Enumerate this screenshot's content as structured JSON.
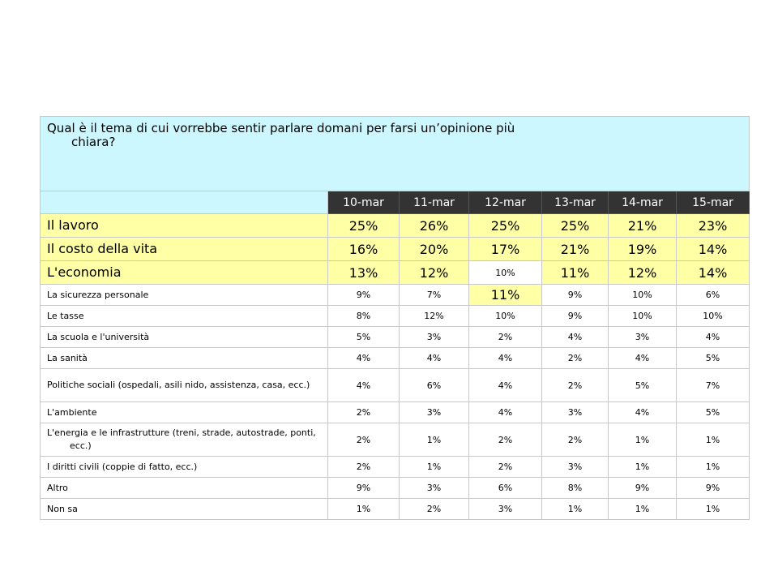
{
  "question": "Qual è il tema di cui vorrebbe sentir parlare domani per farsi un’opinione più chiara?",
  "dates": [
    "10-mar",
    "11-mar",
    "12-mar",
    "13-mar",
    "14-mar",
    "15-mar"
  ],
  "rows": [
    {
      "label": "Il lavoro",
      "values": [
        "25%",
        "26%",
        "25%",
        "25%",
        "21%",
        "23%"
      ]
    },
    {
      "label": "Il costo della vita",
      "values": [
        "16%",
        "20%",
        "17%",
        "21%",
        "19%",
        "14%"
      ]
    },
    {
      "label": "L'economia",
      "values": [
        "13%",
        "12%",
        "10%",
        "11%",
        "12%",
        "14%"
      ]
    },
    {
      "label": "La sicurezza personale",
      "values": [
        "9%",
        "7%",
        "11%",
        "9%",
        "10%",
        "6%"
      ]
    },
    {
      "label": "Le tasse",
      "values": [
        "8%",
        "12%",
        "10%",
        "9%",
        "10%",
        "10%"
      ]
    },
    {
      "label": "La scuola e l'università",
      "values": [
        "5%",
        "3%",
        "2%",
        "4%",
        "3%",
        "4%"
      ]
    },
    {
      "label": "La sanità",
      "values": [
        "4%",
        "4%",
        "4%",
        "2%",
        "4%",
        "5%"
      ]
    },
    {
      "label": "Politiche sociali (ospedali, asili nido, assistenza, casa, ecc.)",
      "values": [
        "4%",
        "6%",
        "4%",
        "2%",
        "5%",
        "7%"
      ]
    },
    {
      "label": "L'ambiente",
      "values": [
        "2%",
        "3%",
        "4%",
        "3%",
        "4%",
        "5%"
      ]
    },
    {
      "label": "L'energia e le infrastrutture (treni, strade, autostrade, ponti, ecc.)",
      "values": [
        "2%",
        "1%",
        "2%",
        "2%",
        "1%",
        "1%"
      ]
    },
    {
      "label": "I diritti civili (coppie di fatto, ecc.)",
      "values": [
        "2%",
        "1%",
        "2%",
        "3%",
        "1%",
        "1%"
      ]
    },
    {
      "label": "Altro",
      "values": [
        "9%",
        "3%",
        "6%",
        "8%",
        "9%",
        "9%"
      ]
    },
    {
      "label": "Non sa",
      "values": [
        "1%",
        "2%",
        "3%",
        "1%",
        "1%",
        "1%"
      ]
    }
  ],
  "colors": {
    "question_bg": "#ccf7ff",
    "header_bg": "#333333",
    "highlight": "#ffffa6"
  }
}
